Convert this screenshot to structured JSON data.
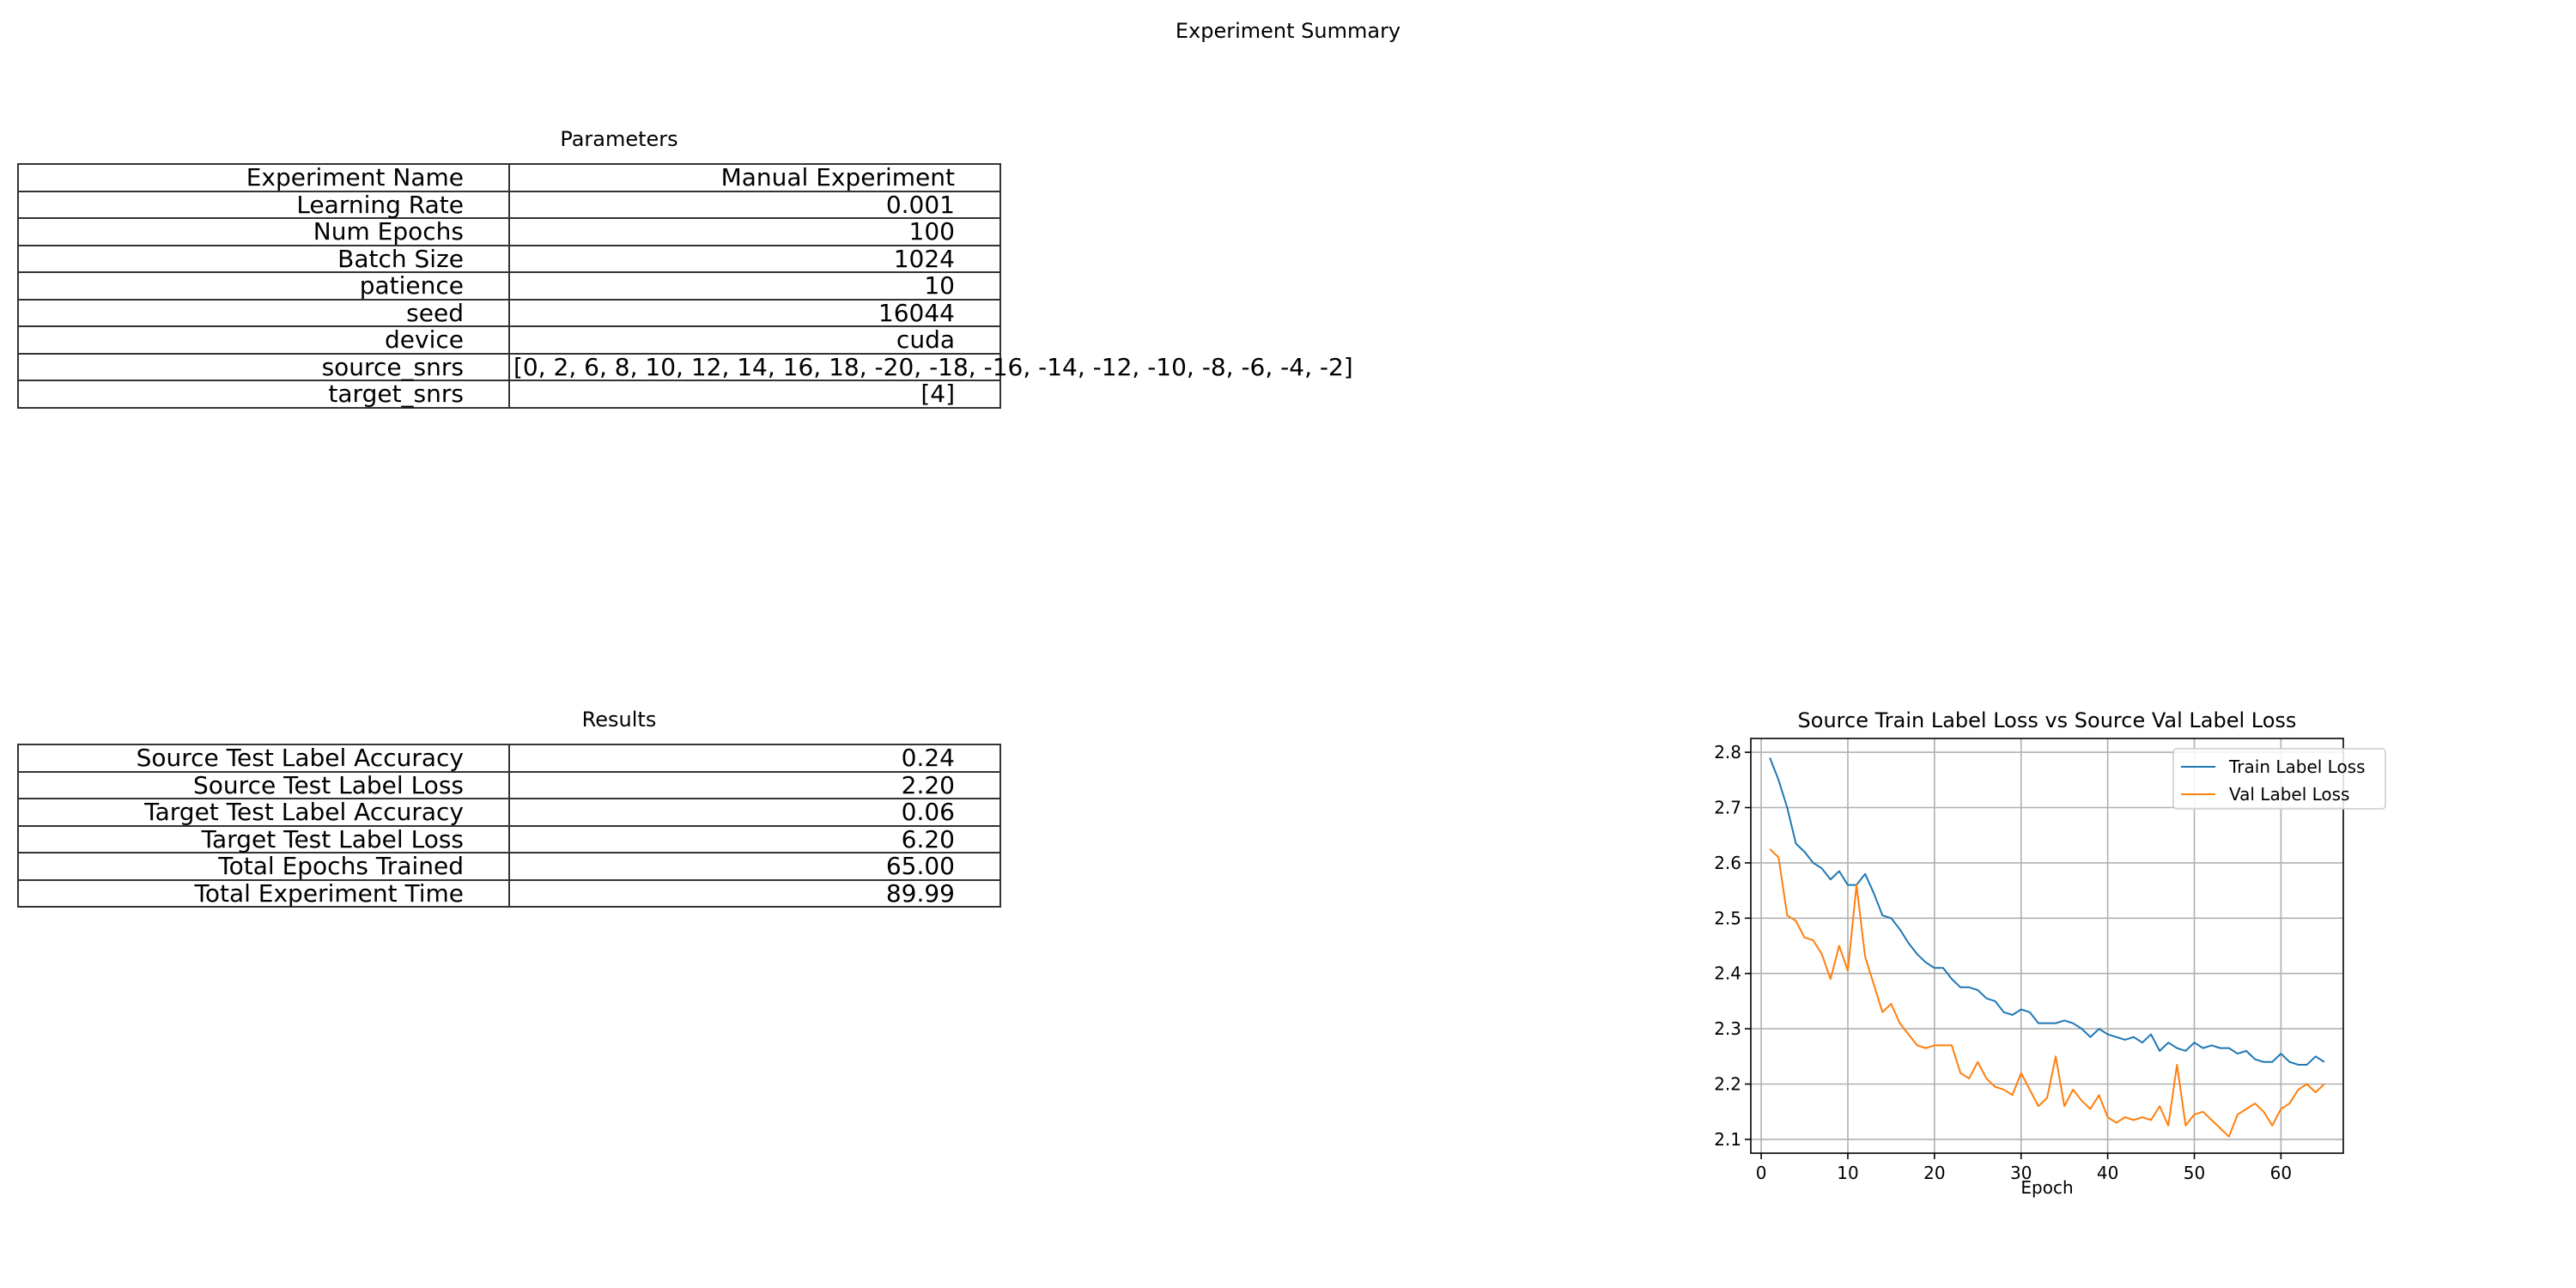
{
  "suptitle": "Experiment Summary",
  "parameters": {
    "title": "Parameters",
    "rows": [
      {
        "label": "Experiment Name",
        "value": "Manual Experiment"
      },
      {
        "label": "Learning Rate",
        "value": "0.001"
      },
      {
        "label": "Num Epochs",
        "value": "100"
      },
      {
        "label": "Batch Size",
        "value": "1024"
      },
      {
        "label": "patience",
        "value": "10"
      },
      {
        "label": "seed",
        "value": "16044"
      },
      {
        "label": "device",
        "value": "cuda"
      },
      {
        "label": "source_snrs",
        "value": "[0, 2, 6, 8, 10, 12, 14, 16, 18, -20, -18, -16, -14, -12, -10, -8, -6, -4, -2]"
      },
      {
        "label": "target_snrs",
        "value": "[4]"
      }
    ]
  },
  "results": {
    "title": "Results",
    "rows": [
      {
        "label": "Source Test Label Accuracy",
        "value": "0.24"
      },
      {
        "label": "Source Test Label Loss",
        "value": "2.20"
      },
      {
        "label": "Target Test Label Accuracy",
        "value": "0.06"
      },
      {
        "label": "Target Test Label Loss",
        "value": "6.20"
      },
      {
        "label": "Total Epochs Trained",
        "value": "65.00"
      },
      {
        "label": "Total Experiment Time",
        "value": "89.99"
      }
    ]
  },
  "chart_data": {
    "type": "line",
    "title": "Source Train Label Loss vs Source Val Label Loss",
    "xlabel": "Epoch",
    "ylabel": "",
    "xlim": [
      -1.2,
      67.2
    ],
    "ylim": [
      2.075,
      2.825
    ],
    "xticks": [
      0,
      10,
      20,
      30,
      40,
      50,
      60
    ],
    "yticks": [
      2.1,
      2.2,
      2.3,
      2.4,
      2.5,
      2.6,
      2.7,
      2.8
    ],
    "grid": true,
    "legend_position": "upper right",
    "x": [
      1,
      2,
      3,
      4,
      5,
      6,
      7,
      8,
      9,
      10,
      11,
      12,
      13,
      14,
      15,
      16,
      17,
      18,
      19,
      20,
      21,
      22,
      23,
      24,
      25,
      26,
      27,
      28,
      29,
      30,
      31,
      32,
      33,
      34,
      35,
      36,
      37,
      38,
      39,
      40,
      41,
      42,
      43,
      44,
      45,
      46,
      47,
      48,
      49,
      50,
      51,
      52,
      53,
      54,
      55,
      56,
      57,
      58,
      59,
      60,
      61,
      62,
      63,
      64,
      65
    ],
    "series": [
      {
        "name": "Train Label Loss",
        "color": "#1f77b4",
        "values": [
          2.79,
          2.75,
          2.7,
          2.635,
          2.62,
          2.6,
          2.59,
          2.57,
          2.585,
          2.56,
          2.56,
          2.58,
          2.545,
          2.505,
          2.5,
          2.48,
          2.455,
          2.435,
          2.42,
          2.41,
          2.41,
          2.39,
          2.375,
          2.375,
          2.37,
          2.355,
          2.35,
          2.33,
          2.325,
          2.335,
          2.33,
          2.31,
          2.31,
          2.31,
          2.315,
          2.31,
          2.3,
          2.285,
          2.3,
          2.29,
          2.285,
          2.28,
          2.285,
          2.275,
          2.29,
          2.26,
          2.275,
          2.265,
          2.26,
          2.275,
          2.265,
          2.27,
          2.265,
          2.265,
          2.255,
          2.26,
          2.245,
          2.24,
          2.24,
          2.255,
          2.24,
          2.235,
          2.235,
          2.25,
          2.24
        ]
      },
      {
        "name": "Val Label Loss",
        "color": "#ff7f0e",
        "values": [
          2.625,
          2.61,
          2.505,
          2.495,
          2.465,
          2.46,
          2.435,
          2.39,
          2.45,
          2.405,
          2.56,
          2.43,
          2.38,
          2.33,
          2.345,
          2.31,
          2.29,
          2.27,
          2.265,
          2.27,
          2.27,
          2.27,
          2.22,
          2.21,
          2.24,
          2.21,
          2.195,
          2.19,
          2.18,
          2.22,
          2.19,
          2.16,
          2.175,
          2.25,
          2.16,
          2.19,
          2.17,
          2.155,
          2.18,
          2.14,
          2.13,
          2.14,
          2.135,
          2.14,
          2.135,
          2.16,
          2.125,
          2.235,
          2.125,
          2.145,
          2.15,
          2.135,
          2.12,
          2.105,
          2.145,
          2.155,
          2.165,
          2.15,
          2.125,
          2.155,
          2.165,
          2.19,
          2.2,
          2.185,
          2.2
        ]
      }
    ]
  }
}
